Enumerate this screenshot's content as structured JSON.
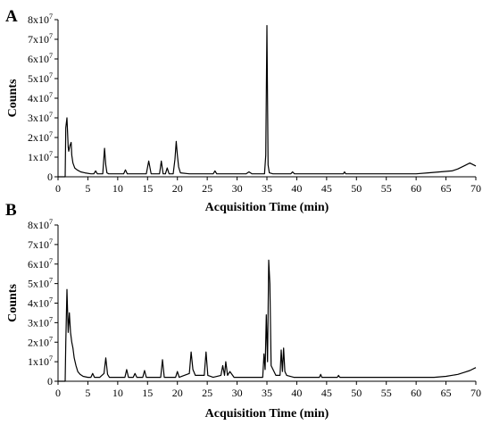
{
  "chart_data": [
    {
      "type": "line",
      "panel_label": "A",
      "xlabel": "Acquisition Time (min)",
      "ylabel": "Counts",
      "xlim": [
        0,
        70
      ],
      "ylim": [
        0,
        80000000.0
      ],
      "x_ticks": [
        0,
        5,
        10,
        15,
        20,
        25,
        30,
        35,
        40,
        45,
        50,
        55,
        60,
        65,
        70
      ],
      "y_ticks": [
        {
          "label": "0",
          "value": 0
        },
        {
          "label": "1x10",
          "exp": "7",
          "value": 10000000.0
        },
        {
          "label": "2x10",
          "exp": "7",
          "value": 20000000.0
        },
        {
          "label": "3x10",
          "exp": "7",
          "value": 30000000.0
        },
        {
          "label": "4x10",
          "exp": "7",
          "value": 40000000.0
        },
        {
          "label": "5x10",
          "exp": "7",
          "value": 50000000.0
        },
        {
          "label": "6x10",
          "exp": "7",
          "value": 60000000.0
        },
        {
          "label": "7x10",
          "exp": "7",
          "value": 70000000.0
        },
        {
          "label": "8x10",
          "exp": "7",
          "value": 80000000.0
        }
      ],
      "series": [
        {
          "x": [
            0,
            1.2,
            1.3,
            1.5,
            1.7,
            1.8,
            2.0,
            2.2,
            2.3,
            2.5,
            2.8,
            3.2,
            3.8,
            4.5,
            5.5,
            6.0,
            6.3,
            6.6,
            7.5,
            7.8,
            8.0,
            8.2,
            8.5,
            9.5,
            10.5,
            11.0,
            11.3,
            11.6,
            13.0,
            14.8,
            15.2,
            15.6,
            16.5,
            17.0,
            17.3,
            17.6,
            18.0,
            18.3,
            18.6,
            19.3,
            19.6,
            19.8,
            20.0,
            20.2,
            20.5,
            22.0,
            24.0,
            26.0,
            26.3,
            26.6,
            29.0,
            31.5,
            32.0,
            32.5,
            34.6,
            34.8,
            35.0,
            35.2,
            35.4,
            36.0,
            39.0,
            39.3,
            39.6,
            44.0,
            47.8,
            48.0,
            48.2,
            52.0,
            56.0,
            60.0,
            62.0,
            64.0,
            66.0,
            67.0,
            68.0,
            69.0,
            70.0
          ],
          "y": [
            0,
            0,
            25000000.0,
            30000000.0,
            15000000.0,
            13000000.0,
            16000000.0,
            17500000.0,
            11000000.0,
            7000000.0,
            4500000.0,
            3500000.0,
            2500000.0,
            2000000.0,
            1500000.0,
            1500000.0,
            3000000.0,
            1500000.0,
            1500000.0,
            14500000.0,
            6000000.0,
            2000000.0,
            1500000.0,
            1500000.0,
            1500000.0,
            1500000.0,
            3500000.0,
            1500000.0,
            1500000.0,
            1500000.0,
            8000000.0,
            1500000.0,
            1500000.0,
            1500000.0,
            8000000.0,
            1500000.0,
            1500000.0,
            4500000.0,
            1500000.0,
            1500000.0,
            9000000.0,
            18000000.0,
            11000000.0,
            5000000.0,
            2000000.0,
            1500000.0,
            1500000.0,
            1500000.0,
            3000000.0,
            1500000.0,
            1500000.0,
            1500000.0,
            2500000.0,
            1500000.0,
            1500000.0,
            11000000.0,
            77000000.0,
            6000000.0,
            2000000.0,
            1500000.0,
            1500000.0,
            2500000.0,
            1500000.0,
            1500000.0,
            1500000.0,
            2500000.0,
            1500000.0,
            1500000.0,
            1500000.0,
            1500000.0,
            2000000.0,
            2500000.0,
            3000000.0,
            4000000.0,
            5500000.0,
            7000000.0,
            5500000.0
          ]
        }
      ]
    },
    {
      "type": "line",
      "panel_label": "B",
      "xlabel": "Acquisition Time (min)",
      "ylabel": "Counts",
      "xlim": [
        0,
        70
      ],
      "ylim": [
        0,
        80000000.0
      ],
      "x_ticks": [
        0,
        5,
        10,
        15,
        20,
        25,
        30,
        35,
        40,
        45,
        50,
        55,
        60,
        65,
        70
      ],
      "y_ticks": [
        {
          "label": "0",
          "value": 0
        },
        {
          "label": "1x10",
          "exp": "7",
          "value": 10000000.0
        },
        {
          "label": "2x10",
          "exp": "7",
          "value": 20000000.0
        },
        {
          "label": "3x10",
          "exp": "7",
          "value": 30000000.0
        },
        {
          "label": "4x10",
          "exp": "7",
          "value": 40000000.0
        },
        {
          "label": "5x10",
          "exp": "7",
          "value": 50000000.0
        },
        {
          "label": "6x10",
          "exp": "7",
          "value": 60000000.0
        },
        {
          "label": "7x10",
          "exp": "7",
          "value": 70000000.0
        },
        {
          "label": "8x10",
          "exp": "7",
          "value": 80000000.0
        }
      ],
      "series": [
        {
          "x": [
            0,
            1.2,
            1.3,
            1.5,
            1.7,
            1.9,
            2.1,
            2.3,
            2.5,
            2.7,
            3.0,
            3.3,
            3.7,
            4.2,
            5.0,
            5.5,
            5.8,
            6.1,
            7.0,
            7.7,
            8.0,
            8.3,
            8.6,
            10.0,
            11.2,
            11.5,
            11.8,
            12.6,
            12.9,
            13.2,
            14.2,
            14.5,
            14.8,
            17.2,
            17.5,
            17.8,
            19.7,
            20.0,
            20.3,
            22.0,
            22.3,
            22.6,
            23.0,
            24.0,
            24.5,
            24.8,
            25.1,
            26.0,
            27.3,
            27.6,
            27.9,
            28.1,
            28.4,
            28.8,
            29.5,
            31.0,
            33.5,
            34.3,
            34.5,
            34.7,
            34.9,
            35.1,
            35.3,
            35.5,
            35.7,
            36.5,
            37.2,
            37.4,
            37.6,
            37.8,
            38.0,
            38.3,
            39.5,
            42.0,
            43.8,
            44.0,
            44.2,
            46.8,
            47.0,
            47.2,
            50.0,
            55.0,
            60.0,
            63.0,
            65.0,
            67.0,
            68.0,
            69.0,
            70.0
          ],
          "y": [
            0,
            0,
            20000000.0,
            47000000.0,
            25000000.0,
            35000000.0,
            25000000.0,
            20000000.0,
            17000000.0,
            12000000.0,
            8000000.0,
            5000000.0,
            3500000.0,
            2500000.0,
            2000000.0,
            2000000.0,
            4000000.0,
            2000000.0,
            2000000.0,
            4000000.0,
            12000000.0,
            3500000.0,
            2000000.0,
            2000000.0,
            2000000.0,
            6000000.0,
            2000000.0,
            2000000.0,
            4000000.0,
            2000000.0,
            2000000.0,
            5500000.0,
            2000000.0,
            2000000.0,
            11000000.0,
            2000000.0,
            2000000.0,
            5000000.0,
            2000000.0,
            4000000.0,
            15000000.0,
            6000000.0,
            3000000.0,
            3000000.0,
            3000000.0,
            15000000.0,
            3000000.0,
            2000000.0,
            3000000.0,
            8000000.0,
            3000000.0,
            10000000.0,
            3000000.0,
            5000000.0,
            2000000.0,
            2000000.0,
            2000000.0,
            2000000.0,
            14000000.0,
            6000000.0,
            34000000.0,
            10000000.0,
            62000000.0,
            50000000.0,
            8000000.0,
            3000000.0,
            3000000.0,
            16000000.0,
            5000000.0,
            17000000.0,
            5000000.0,
            3000000.0,
            2000000.0,
            2000000.0,
            2000000.0,
            3500000.0,
            2000000.0,
            2000000.0,
            3000000.0,
            2000000.0,
            2000000.0,
            2000000.0,
            2000000.0,
            2000000.0,
            2500000.0,
            3500000.0,
            4500000.0,
            5500000.0,
            7000000.0
          ]
        }
      ]
    }
  ]
}
